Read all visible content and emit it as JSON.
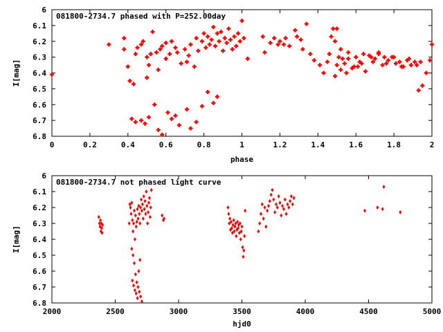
{
  "colors": {
    "points": "#ff0000",
    "axes": "#000000"
  },
  "chart_data": [
    {
      "type": "scatter",
      "title": "081800-2734.7 phased with P=252.00day",
      "xlabel": "phase",
      "ylabel": "I[mag]",
      "xlim": [
        0,
        2
      ],
      "ylim": [
        6.8,
        6
      ],
      "y_inverted": true,
      "xticks": [
        "0",
        "0.2",
        "0.4",
        "0.6",
        "0.8",
        "1",
        "1.2",
        "1.4",
        "1.6",
        "1.8",
        "2"
      ],
      "yticks": [
        "6",
        "6.1",
        "6.2",
        "6.3",
        "6.4",
        "6.5",
        "6.6",
        "6.7",
        "6.8"
      ],
      "marker": "cross",
      "grid": false,
      "x": [
        0.0,
        0.3,
        0.38,
        0.38,
        0.4,
        0.41,
        0.43,
        0.44,
        0.45,
        0.47,
        0.48,
        0.5,
        0.5,
        0.51,
        0.52,
        0.53,
        0.55,
        0.56,
        0.57,
        0.58,
        0.6,
        0.6,
        0.62,
        0.63,
        0.65,
        0.66,
        0.68,
        0.7,
        0.71,
        0.72,
        0.73,
        0.75,
        0.76,
        0.77,
        0.79,
        0.8,
        0.81,
        0.82,
        0.83,
        0.84,
        0.85,
        0.86,
        0.87,
        0.88,
        0.89,
        0.9,
        0.91,
        0.92,
        0.93,
        0.94,
        0.95,
        0.96,
        0.97,
        0.98,
        0.99,
        1.0,
        1.01,
        1.03,
        1.11,
        1.12,
        1.15,
        1.17,
        1.19,
        1.2,
        1.22,
        1.23,
        1.25,
        1.28,
        1.29,
        1.31,
        1.32,
        1.34,
        1.36,
        1.38,
        1.41,
        1.43,
        1.45,
        1.46,
        1.47,
        1.48,
        1.49,
        1.5,
        1.51,
        1.52,
        1.54,
        1.55,
        1.56,
        1.58,
        1.6,
        1.61,
        1.63,
        1.65,
        1.67,
        1.69,
        1.7,
        1.72,
        1.74,
        1.75,
        1.77,
        1.79,
        1.81,
        1.83,
        1.85,
        1.87,
        1.89,
        1.91,
        1.93,
        1.95,
        1.97,
        1.99,
        2.0,
        0.42,
        0.44,
        0.47,
        0.49,
        0.51,
        0.54,
        0.56,
        0.58,
        0.61,
        0.63,
        0.65,
        0.67,
        0.71,
        0.73,
        0.76,
        0.79,
        0.82,
        0.85,
        0.87,
        1.49,
        1.5,
        1.52,
        1.53,
        1.56,
        1.59,
        1.62,
        1.64,
        1.68,
        1.72,
        1.76,
        1.8,
        1.84,
        1.88,
        1.92,
        1.94
      ],
      "y": [
        6.41,
        6.22,
        6.25,
        6.18,
        6.36,
        6.45,
        6.47,
        6.28,
        6.24,
        6.22,
        6.2,
        6.3,
        6.43,
        6.35,
        6.28,
        6.14,
        6.27,
        6.38,
        6.25,
        6.23,
        6.31,
        6.21,
        6.28,
        6.2,
        6.24,
        6.27,
        6.34,
        6.25,
        6.33,
        6.29,
        6.22,
        6.36,
        6.18,
        6.26,
        6.2,
        6.15,
        6.24,
        6.17,
        6.22,
        6.19,
        6.11,
        6.23,
        6.15,
        6.2,
        6.14,
        6.26,
        6.18,
        6.21,
        6.12,
        6.19,
        6.25,
        6.17,
        6.23,
        6.15,
        6.2,
        6.07,
        6.18,
        6.31,
        6.17,
        6.27,
        6.21,
        6.18,
        6.22,
        6.2,
        6.22,
        6.18,
        6.23,
        6.13,
        6.17,
        6.19,
        6.25,
        6.09,
        6.28,
        6.32,
        6.35,
        6.4,
        6.33,
        6.28,
        6.17,
        6.12,
        6.42,
        6.35,
        6.3,
        6.38,
        6.34,
        6.4,
        6.31,
        6.37,
        6.3,
        6.36,
        6.34,
        6.39,
        6.29,
        6.33,
        6.31,
        6.28,
        6.35,
        6.3,
        6.32,
        6.3,
        6.34,
        6.33,
        6.36,
        6.32,
        6.35,
        6.33,
        6.51,
        6.48,
        6.4,
        6.32,
        6.22,
        6.69,
        6.71,
        6.7,
        6.72,
        6.68,
        6.6,
        6.76,
        6.79,
        6.65,
        6.69,
        6.67,
        6.73,
        6.63,
        6.75,
        6.71,
        6.61,
        6.52,
        6.59,
        6.55,
        6.2,
        6.12,
        6.25,
        6.31,
        6.27,
        6.36,
        6.33,
        6.28,
        6.3,
        6.27,
        6.34,
        6.3,
        6.36,
        6.31,
        6.35,
        6.33
      ]
    },
    {
      "type": "scatter",
      "title": "081800-2734.7 not phased light curve",
      "xlabel": "hjd0",
      "ylabel": "I[mag]",
      "xlim": [
        2000,
        5000
      ],
      "ylim": [
        6.8,
        6
      ],
      "y_inverted": true,
      "xticks": [
        "2000",
        "2500",
        "3000",
        "3500",
        "4000",
        "4500",
        "5000"
      ],
      "yticks": [
        "6",
        "6.1",
        "6.2",
        "6.3",
        "6.4",
        "6.5",
        "6.6",
        "6.7",
        "6.8"
      ],
      "marker": "diamond",
      "grid": false,
      "x": [
        2370,
        2375,
        2380,
        2383,
        2387,
        2390,
        2393,
        2396,
        2400,
        2610,
        2615,
        2620,
        2625,
        2630,
        2635,
        2640,
        2645,
        2650,
        2655,
        2660,
        2665,
        2670,
        2675,
        2680,
        2685,
        2690,
        2695,
        2700,
        2705,
        2710,
        2715,
        2720,
        2725,
        2730,
        2735,
        2740,
        2745,
        2750,
        2755,
        2760,
        2765,
        2770,
        2775,
        2780,
        2785,
        2630,
        2640,
        2650,
        2660,
        2670,
        2680,
        2690,
        2700,
        2710,
        2635,
        2645,
        2655,
        2665,
        2675,
        2685,
        2695,
        2870,
        2880,
        2885,
        3390,
        3395,
        3400,
        3405,
        3410,
        3415,
        3420,
        3425,
        3430,
        3435,
        3440,
        3445,
        3450,
        3455,
        3460,
        3465,
        3470,
        3475,
        3480,
        3485,
        3490,
        3495,
        3500,
        3505,
        3510,
        3515,
        3520,
        3525,
        3630,
        3640,
        3650,
        3660,
        3670,
        3680,
        3690,
        3700,
        3710,
        3720,
        3730,
        3740,
        3750,
        3760,
        3770,
        3780,
        3790,
        3800,
        3810,
        3820,
        3830,
        3840,
        3850,
        3860,
        3870,
        3880,
        3890,
        3900,
        3910,
        4470,
        4570,
        4610,
        4620,
        4750
      ],
      "y": [
        6.26,
        6.3,
        6.32,
        6.28,
        6.35,
        6.3,
        6.33,
        6.36,
        6.31,
        6.3,
        6.18,
        6.2,
        6.24,
        6.17,
        6.28,
        6.35,
        6.3,
        6.22,
        6.4,
        6.25,
        6.32,
        6.29,
        6.21,
        6.27,
        6.19,
        6.24,
        6.3,
        6.2,
        6.15,
        6.22,
        6.18,
        6.27,
        6.13,
        6.21,
        6.16,
        6.24,
        6.1,
        6.19,
        6.3,
        6.23,
        6.17,
        6.14,
        6.26,
        6.2,
        6.09,
        6.46,
        6.5,
        6.55,
        6.62,
        6.67,
        6.7,
        6.73,
        6.76,
        6.79,
        6.66,
        6.69,
        6.72,
        6.74,
        6.77,
        6.6,
        6.53,
        6.25,
        6.28,
        6.27,
        6.2,
        6.24,
        6.3,
        6.27,
        6.34,
        6.29,
        6.33,
        6.36,
        6.31,
        6.28,
        6.35,
        6.32,
        6.3,
        6.38,
        6.34,
        6.29,
        6.33,
        6.31,
        6.36,
        6.3,
        6.4,
        6.35,
        6.32,
        6.45,
        6.51,
        6.47,
        6.38,
        6.22,
        6.35,
        6.3,
        6.24,
        6.18,
        6.27,
        6.2,
        6.32,
        6.22,
        6.19,
        6.16,
        6.12,
        6.09,
        6.15,
        6.23,
        6.18,
        6.2,
        6.13,
        6.17,
        6.25,
        6.19,
        6.21,
        6.15,
        6.24,
        6.18,
        6.2,
        6.16,
        6.13,
        6.18,
        6.14,
        6.22,
        6.2,
        6.21,
        6.07,
        6.23
      ]
    }
  ]
}
